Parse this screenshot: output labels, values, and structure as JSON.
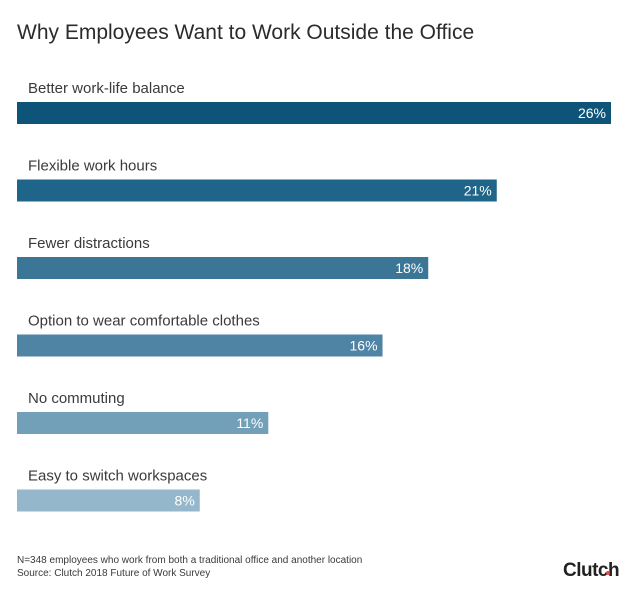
{
  "chart_data": {
    "type": "bar",
    "orientation": "horizontal",
    "title": "Why Employees Want to Work Outside the Office",
    "categories": [
      "Better work-life balance",
      "Flexible work hours",
      "Fewer distractions",
      "Option to wear comfortable clothes",
      "No commuting",
      "Easy to switch workspaces"
    ],
    "values": [
      26,
      21,
      18,
      16,
      11,
      8
    ],
    "value_labels": [
      "26%",
      "21%",
      "18%",
      "16%",
      "11%",
      "8%"
    ],
    "unit": "%",
    "xlim": [
      0,
      26
    ],
    "grid": false,
    "legend": "none",
    "bar_colors": [
      "#0e5479",
      "#1f6489",
      "#3c7697",
      "#4f84a5",
      "#73a0b9",
      "#95b7cb"
    ]
  },
  "footnote": {
    "line1": "N=348 employees who work from both a traditional office and another location",
    "line2": "Source: Clutch 2018 Future of Work Survey"
  },
  "brand": {
    "name": "Clutch",
    "accent_dot_color": "#e8483f"
  }
}
